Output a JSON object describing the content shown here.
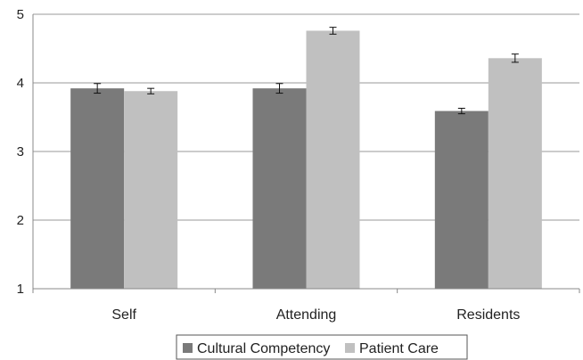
{
  "chart_data": {
    "type": "bar",
    "categories": [
      "Self",
      "Attending",
      "Residents"
    ],
    "series": [
      {
        "name": "Cultural Competency",
        "values": [
          3.92,
          3.92,
          3.59
        ],
        "errors": [
          0.07,
          0.07,
          0.04
        ],
        "color": "#7a7a7a"
      },
      {
        "name": "Patient Care",
        "values": [
          3.88,
          4.76,
          4.36
        ],
        "errors": [
          0.04,
          0.05,
          0.06
        ],
        "color": "#c0c0c0"
      }
    ],
    "ylim": [
      1,
      5
    ],
    "yticks": [
      "1",
      "2",
      "3",
      "4",
      "5"
    ],
    "grid": true,
    "legend_position": "bottom",
    "title": "",
    "xlabel": "",
    "ylabel": ""
  }
}
